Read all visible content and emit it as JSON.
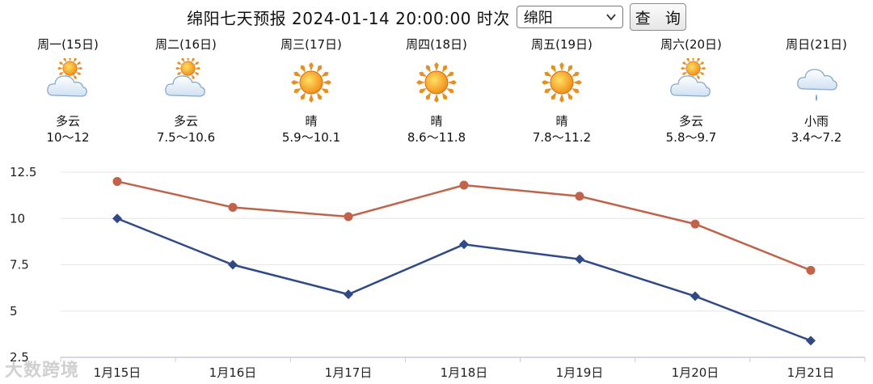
{
  "header": {
    "title": "绵阳七天预报 2024-01-14 20:00:00 时次",
    "city_selected": "绵阳",
    "query_label": "查 询"
  },
  "days": [
    {
      "name": "周一(15日)",
      "icon": "partly-cloudy-icon",
      "condition": "多云",
      "range": "10～12"
    },
    {
      "name": "周二(16日)",
      "icon": "partly-cloudy-icon",
      "condition": "多云",
      "range": "7.5～10.6"
    },
    {
      "name": "周三(17日)",
      "icon": "sunny-icon",
      "condition": "晴",
      "range": "5.9～10.1"
    },
    {
      "name": "周四(18日)",
      "icon": "sunny-icon",
      "condition": "晴",
      "range": "8.6～11.8"
    },
    {
      "name": "周五(19日)",
      "icon": "sunny-icon",
      "condition": "晴",
      "range": "7.8～11.2"
    },
    {
      "name": "周六(20日)",
      "icon": "partly-cloudy-icon",
      "condition": "多云",
      "range": "5.8～9.7"
    },
    {
      "name": "周日(21日)",
      "icon": "light-rain-icon",
      "condition": "小雨",
      "range": "3.4～7.2"
    }
  ],
  "chart_data": {
    "type": "line",
    "categories": [
      "1月15日",
      "1月16日",
      "1月17日",
      "1月18日",
      "1月19日",
      "1月20日",
      "1月21日"
    ],
    "series": [
      {
        "values": [
          12,
          10.6,
          10.1,
          11.8,
          11.2,
          9.7,
          7.2
        ],
        "color": "#c0634a",
        "marker": "circle"
      },
      {
        "values": [
          10,
          7.5,
          5.9,
          8.6,
          7.8,
          5.8,
          3.4
        ],
        "color": "#2f4a87",
        "marker": "diamond"
      }
    ],
    "y_ticks": [
      "12.5",
      "10",
      "7.5",
      "5",
      "2.5"
    ],
    "ylim": [
      2.5,
      12.5
    ],
    "grid": true,
    "title": "",
    "xlabel": "",
    "ylabel": ""
  },
  "watermark": "大数跨境",
  "colors": {
    "grid": "#e6e6e6",
    "axis": "#c8cbe0"
  }
}
